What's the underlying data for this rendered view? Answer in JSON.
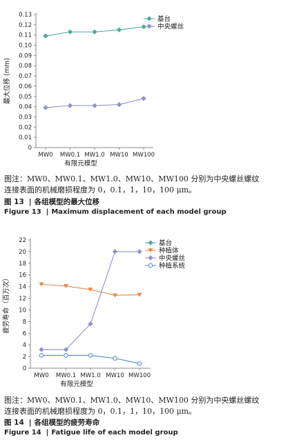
{
  "figure13": {
    "note_line1": "图注：MW0、MW0.1、MW1.0、MW10、MW100 分别为中央螺丝螺纹",
    "note_line2": "连接表面的机械磨损程度为 0，0.1，1，10，100 μm。",
    "caption_cn_num": "图 13",
    "caption_cn_text": "各组模型的最大位移",
    "caption_en_num": "Figure 13",
    "caption_en_text": "Maximum displacement of each model group"
  },
  "figure14": {
    "note_line1": "图注：MW0、MW0.1、MW1.0、MW10、MW100 分别为中央螺丝螺纹",
    "note_line2": "连接表面的机械磨损程度为 0，0.1，1，10，100 μm。",
    "caption_cn_num": "图 14",
    "caption_cn_text": "各组模型的疲劳寿命",
    "caption_en_num": "Figure 14",
    "caption_en_text": "Fatigue life of each model group"
  },
  "separator": "|",
  "chart_data": [
    {
      "type": "line",
      "categories": [
        "MW0",
        "MW0.1",
        "MW1.0",
        "MW10",
        "MW100"
      ],
      "series": [
        {
          "name": "基台",
          "values": [
            0.109,
            0.113,
            0.113,
            0.115,
            0.118
          ],
          "color": "#4aab9b",
          "marker": "diamond"
        },
        {
          "name": "中央螺丝",
          "values": [
            0.039,
            0.041,
            0.041,
            0.042,
            0.048
          ],
          "color": "#8c8fd0",
          "marker": "diamond"
        }
      ],
      "xlabel": "有限元模型",
      "ylabel": "最大位移 (mm)",
      "ylim": [
        0,
        0.13
      ],
      "yticks": [
        "0",
        "0.01",
        "0.02",
        "0.03",
        "0.04",
        "0.05",
        "0.06",
        "0.07",
        "0.08",
        "0.09",
        "0.10",
        "0.11",
        "0.12",
        "0.13"
      ],
      "grid": false,
      "legend": "top-right"
    },
    {
      "type": "line",
      "categories": [
        "MW0",
        "MW0.1",
        "MW1.0",
        "MW10",
        "MW100"
      ],
      "series": [
        {
          "name": "基台",
          "values": [
            2.2,
            2.2,
            2.2,
            1.7,
            0.8
          ],
          "color": "#4aab9b",
          "marker": "diamond"
        },
        {
          "name": "种植体",
          "values": [
            14.4,
            14.1,
            13.5,
            12.5,
            12.6
          ],
          "color": "#e8894a",
          "marker": "triangle-down"
        },
        {
          "name": "中央螺丝",
          "values": [
            3.2,
            3.2,
            7.6,
            20.0,
            20.0
          ],
          "color": "#8c8fd0",
          "marker": "diamond"
        },
        {
          "name": "种植系统",
          "values": [
            2.2,
            2.2,
            2.2,
            1.7,
            0.8
          ],
          "color": "#5b8fd6",
          "marker": "circle-open"
        }
      ],
      "xlabel": "有限元模型",
      "ylabel": "疲劳寿命（百万次）",
      "ylim": [
        0,
        22
      ],
      "yticks": [
        "0",
        "2",
        "4",
        "6",
        "8",
        "10",
        "12",
        "14",
        "16",
        "18",
        "20",
        "22"
      ],
      "grid": false,
      "legend": "top-right"
    }
  ]
}
